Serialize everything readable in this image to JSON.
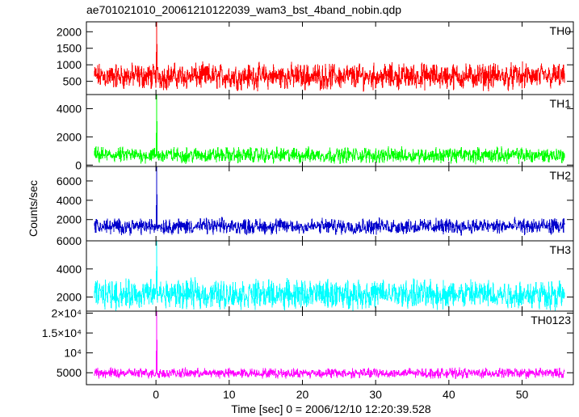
{
  "title": "ae701021010_20061210122039_wam3_bst_4band_nobin.qdp",
  "chart_data": {
    "type": "line",
    "title": "ae701021010_20061210122039_wam3_bst_4band_nobin.qdp",
    "xlabel": "Time [sec] 0 = 2006/12/10 12:20:39.528",
    "ylabel": "Counts/sec",
    "xlim": [
      -9.5,
      57
    ],
    "x_ticks": [
      0,
      10,
      20,
      30,
      40,
      50
    ],
    "x_tick_labels": [
      "0",
      "10",
      "20",
      "30",
      "40",
      "50"
    ],
    "x_start": -8.4,
    "x_end": 55.8,
    "panels": [
      {
        "name": "TH0",
        "label": "TH0",
        "color": "#ff0000",
        "ylim": [
          100,
          2300
        ],
        "yticks": [
          500,
          1000,
          1500,
          2000
        ],
        "ytick_labels": [
          "500",
          "1000",
          "1500",
          "2000"
        ],
        "baseline": 650,
        "noise_low": 300,
        "noise_high": 1250,
        "burst": {
          "time": 0.1,
          "peak": 2300
        }
      },
      {
        "name": "TH1",
        "label": "TH1",
        "color": "#00ff00",
        "ylim": [
          -100,
          5000
        ],
        "yticks": [
          0,
          2000,
          4000
        ],
        "ytick_labels": [
          "0",
          "2000",
          "4000"
        ],
        "baseline": 700,
        "noise_low": 150,
        "noise_high": 1500,
        "burst": {
          "time": 0.1,
          "peak": 5000
        }
      },
      {
        "name": "TH2",
        "label": "TH2",
        "color": "#0000cc",
        "ylim": [
          -200,
          7500
        ],
        "yticks": [
          2000,
          4000,
          6000
        ],
        "ytick_labels": [
          "2000",
          "4000",
          "6000"
        ],
        "baseline": 1300,
        "noise_low": 600,
        "noise_high": 2600,
        "burst": {
          "time": 0.1,
          "peak": 7500
        }
      },
      {
        "name": "TH3",
        "label": "TH3",
        "color": "#00ffff",
        "ylim": [
          1000,
          6000
        ],
        "yticks": [
          2000,
          4000,
          6000
        ],
        "ytick_labels": [
          "2000",
          "4000",
          "6000"
        ],
        "baseline": 2200,
        "noise_low": 1200,
        "noise_high": 3700,
        "burst": {
          "time": 0.1,
          "peak": 6000
        }
      },
      {
        "name": "TH0123",
        "label": "TH0123",
        "color": "#ff00ff",
        "ylim": [
          2000,
          20500
        ],
        "yticks": [
          5000,
          10000,
          15000,
          20000
        ],
        "ytick_labels": [
          "5000",
          "10⁴",
          "1.5×10⁴",
          "2×10⁴"
        ],
        "baseline": 4900,
        "noise_low": 3600,
        "noise_high": 6600,
        "burst": {
          "time": 0.1,
          "peak": 20500
        }
      }
    ]
  }
}
